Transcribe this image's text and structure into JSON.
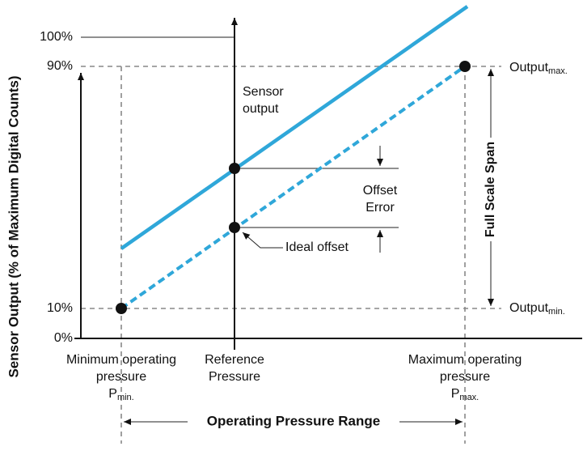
{
  "y_axis": {
    "title": "Sensor Output (% of Maximum Digital Counts)",
    "ticks": [
      "100%",
      "90%",
      "10%",
      "0%"
    ]
  },
  "annotations": {
    "sensor_output": [
      "Sensor",
      "output"
    ],
    "offset_error": [
      "Offset",
      "Error"
    ],
    "ideal_offset": "Ideal offset",
    "full_scale_span": "Full Scale Span",
    "output_max": {
      "text": "Output",
      "sub": "max."
    },
    "output_min": {
      "text": "Output",
      "sub": "min."
    }
  },
  "x_axis": {
    "minimum": {
      "lines": [
        "Minimum operating",
        "pressure"
      ],
      "symbol": "P",
      "sub": "min."
    },
    "reference": {
      "lines": [
        "Reference",
        "Pressure"
      ]
    },
    "maximum": {
      "lines": [
        "Maximum operating",
        "pressure"
      ],
      "symbol": "P",
      "sub": "max."
    },
    "range": "Operating Pressure Range"
  }
}
